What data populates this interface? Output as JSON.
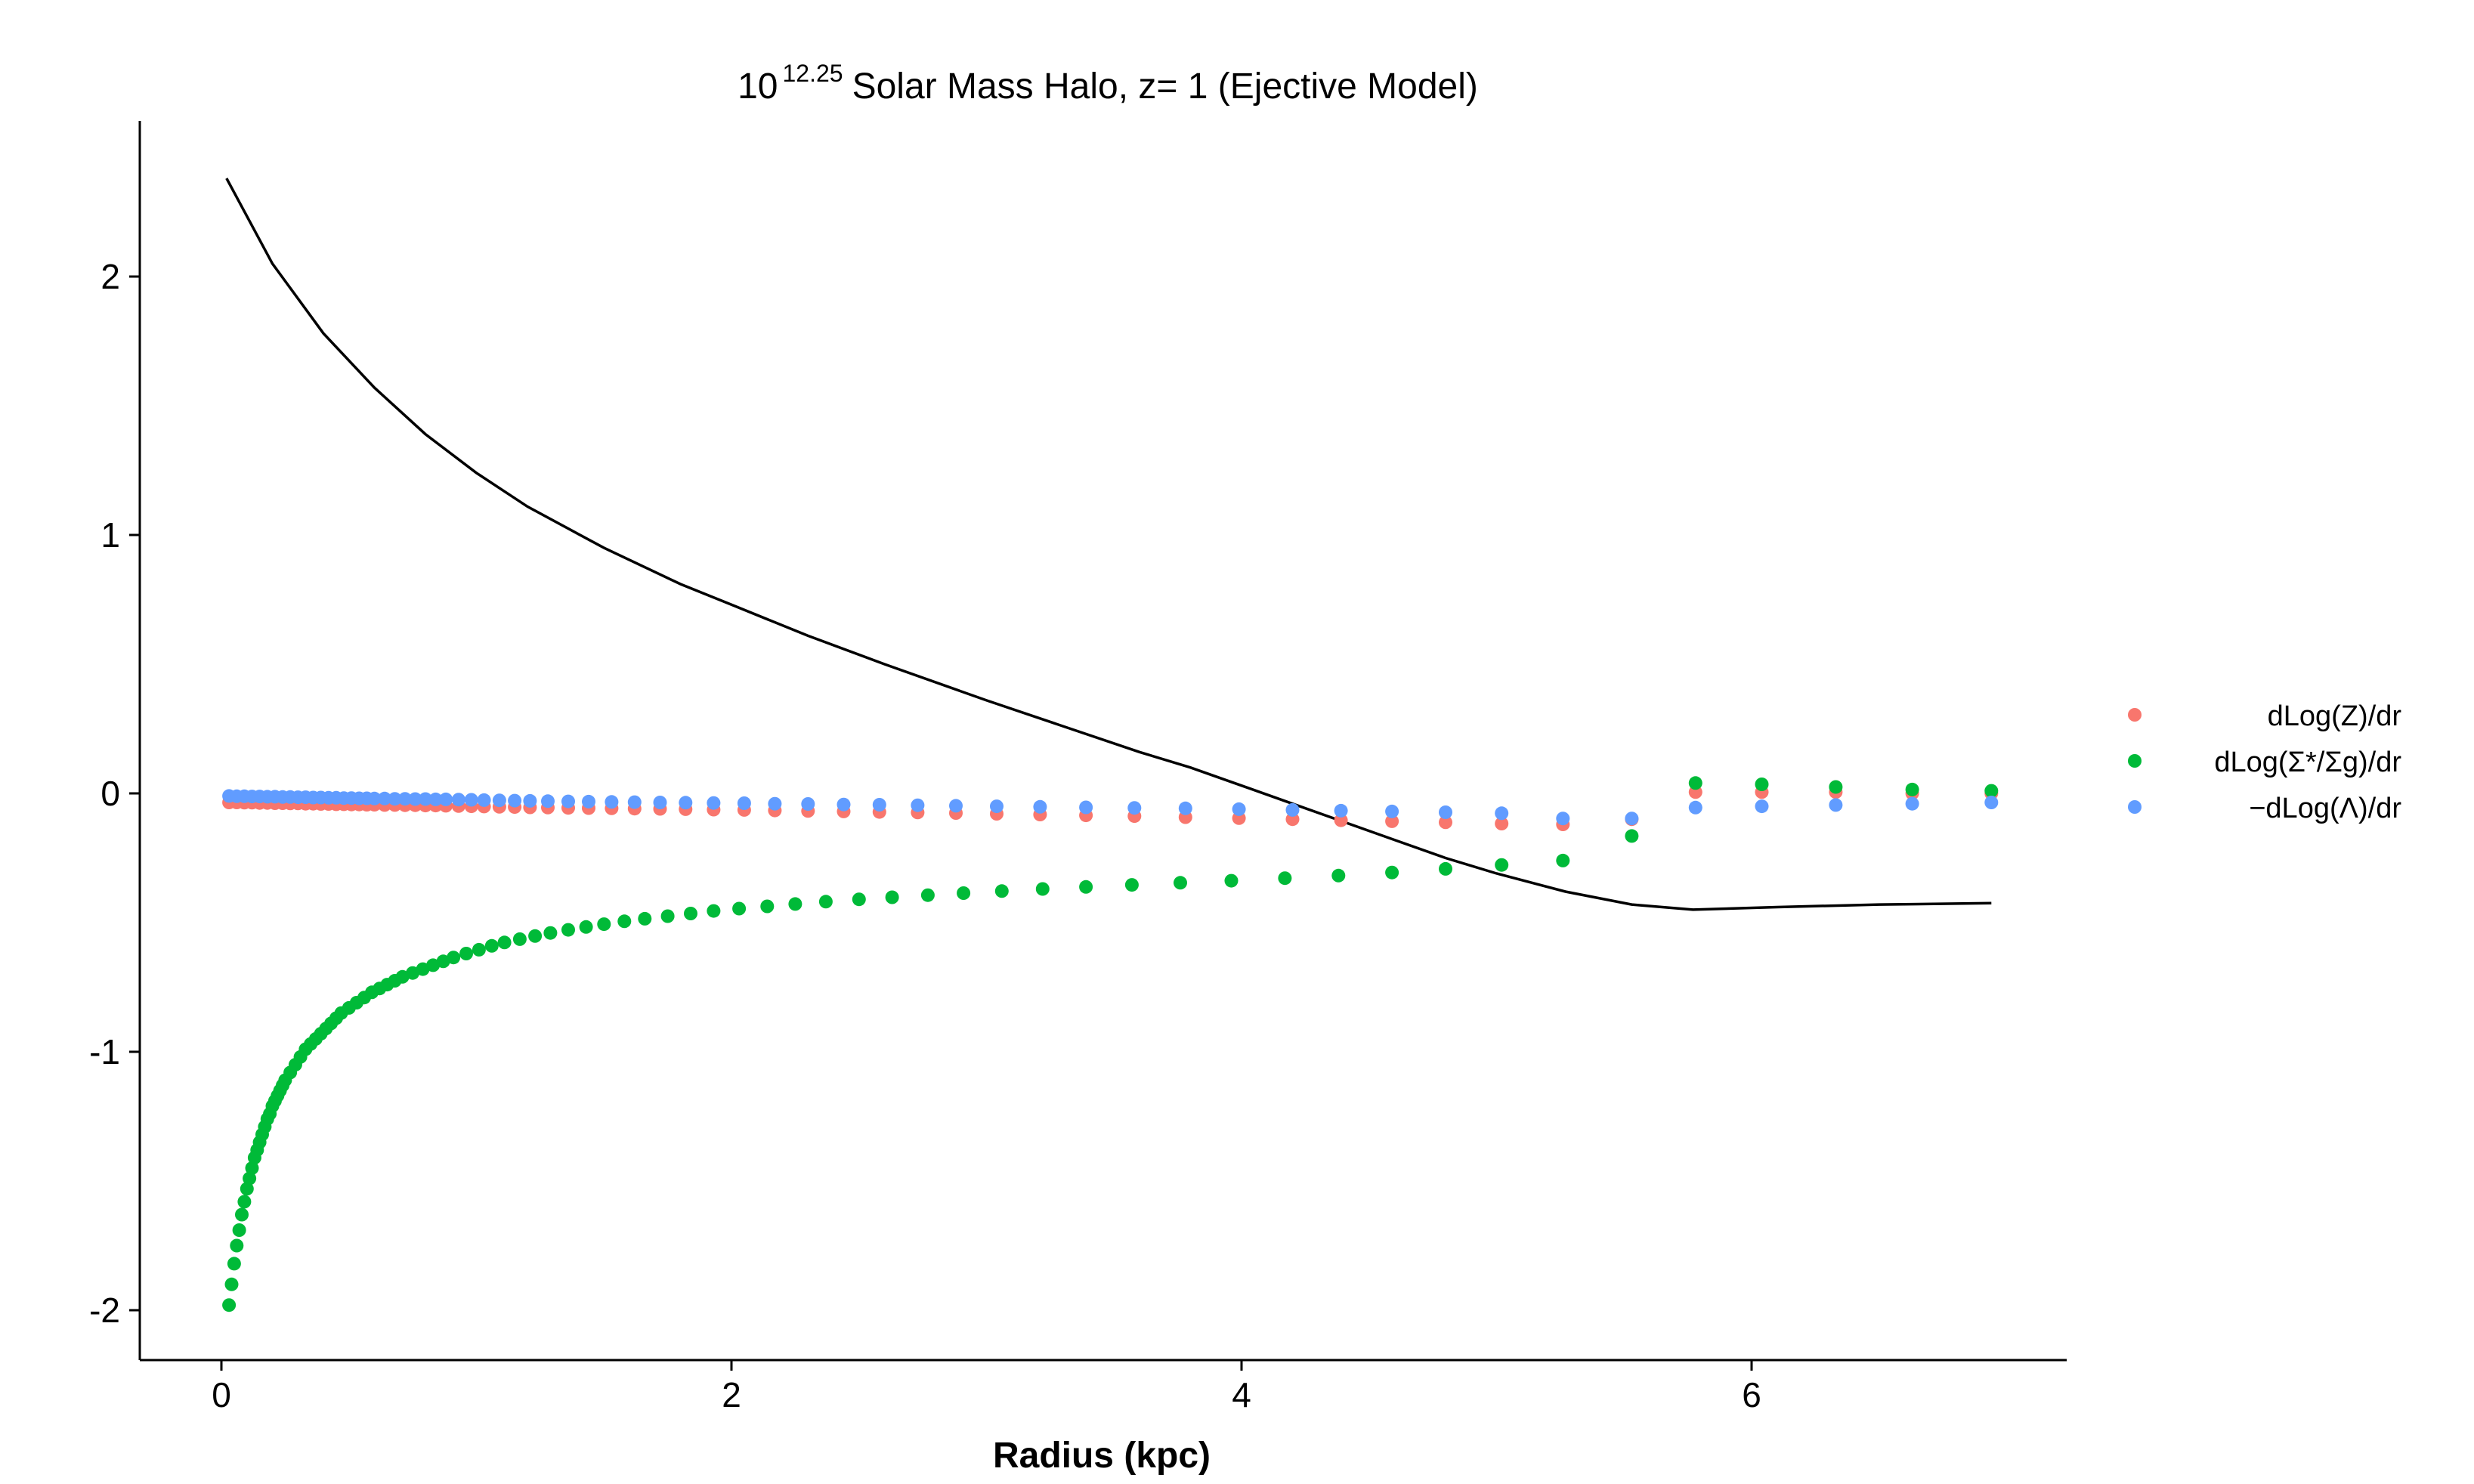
{
  "chart_data": {
    "type": "scatter",
    "title": {
      "base": "10",
      "exponent": "12.25",
      "text": "Solar Mass Halo, z= 1 (Ejective Model)"
    },
    "xlabel": "Radius (kpc)",
    "ylabel": "",
    "xlim": [
      -0.3,
      7.3
    ],
    "ylim": [
      -2.2,
      2.6
    ],
    "x_ticks": [
      0,
      2,
      4,
      6
    ],
    "x_tick_labels": [
      "0",
      "2",
      "4",
      "6"
    ],
    "y_ticks": [
      -2,
      -1,
      0,
      1,
      2
    ],
    "y_tick_labels": [
      "-2",
      "-1",
      "0",
      "1",
      "2"
    ],
    "grid": false,
    "legend_position": "right",
    "legend": [
      {
        "label": "dLog(Z)/dr",
        "color": "#F8766D"
      },
      {
        "label": "dLog(Σ*/Σg)/dr",
        "color": "#00BA38"
      },
      {
        "label": "−dLog(Λ)/dr",
        "color": "#619CFF"
      }
    ],
    "line": {
      "color": "#000000",
      "x": [
        0.02,
        0.2,
        0.4,
        0.6,
        0.8,
        1.0,
        1.2,
        1.5,
        1.8,
        2.0,
        2.3,
        2.6,
        3.0,
        3.3,
        3.6,
        3.8,
        4.0,
        4.2,
        4.4,
        4.6,
        4.8,
        5.0,
        5.27,
        5.53,
        5.77,
        6.1,
        6.5,
        6.94
      ],
      "y": [
        2.38,
        2.05,
        1.78,
        1.57,
        1.39,
        1.24,
        1.11,
        0.95,
        0.81,
        0.73,
        0.61,
        0.5,
        0.36,
        0.26,
        0.16,
        0.1,
        0.03,
        -0.04,
        -0.11,
        -0.18,
        -0.25,
        -0.31,
        -0.38,
        -0.43,
        -0.45,
        -0.44,
        -0.43,
        -0.425
      ]
    },
    "series": [
      {
        "name": "dLog(Z)/dr",
        "color": "#F8766D",
        "x": [
          0.03,
          0.06,
          0.09,
          0.12,
          0.15,
          0.18,
          0.21,
          0.24,
          0.27,
          0.3,
          0.33,
          0.36,
          0.39,
          0.42,
          0.45,
          0.48,
          0.51,
          0.54,
          0.57,
          0.6,
          0.64,
          0.68,
          0.72,
          0.76,
          0.8,
          0.84,
          0.88,
          0.93,
          0.98,
          1.03,
          1.09,
          1.15,
          1.21,
          1.28,
          1.36,
          1.44,
          1.53,
          1.62,
          1.72,
          1.82,
          1.93,
          2.05,
          2.17,
          2.3,
          2.44,
          2.58,
          2.73,
          2.88,
          3.04,
          3.21,
          3.39,
          3.58,
          3.78,
          3.99,
          4.2,
          4.39,
          4.59,
          4.8,
          5.02,
          5.26,
          5.53,
          5.78,
          6.04,
          6.33,
          6.63,
          6.94
        ],
        "y": [
          -0.035,
          -0.035,
          -0.036,
          -0.036,
          -0.037,
          -0.037,
          -0.038,
          -0.038,
          -0.039,
          -0.039,
          -0.04,
          -0.04,
          -0.041,
          -0.041,
          -0.042,
          -0.042,
          -0.043,
          -0.043,
          -0.044,
          -0.044,
          -0.045,
          -0.045,
          -0.046,
          -0.046,
          -0.047,
          -0.047,
          -0.048,
          -0.049,
          -0.05,
          -0.051,
          -0.052,
          -0.053,
          -0.054,
          -0.055,
          -0.056,
          -0.057,
          -0.058,
          -0.059,
          -0.06,
          -0.061,
          -0.063,
          -0.064,
          -0.066,
          -0.068,
          -0.07,
          -0.072,
          -0.074,
          -0.076,
          -0.079,
          -0.082,
          -0.085,
          -0.088,
          -0.092,
          -0.096,
          -0.1,
          -0.104,
          -0.108,
          -0.112,
          -0.117,
          -0.12,
          -0.1,
          0.005,
          0.005,
          0.005,
          0.0,
          0.0
        ]
      },
      {
        "name": "dLog(Σ*/Σg)/dr",
        "color": "#00BA38",
        "x": [
          0.03,
          0.04,
          0.05,
          0.06,
          0.07,
          0.08,
          0.09,
          0.1,
          0.11,
          0.12,
          0.13,
          0.14,
          0.15,
          0.16,
          0.17,
          0.18,
          0.19,
          0.2,
          0.21,
          0.22,
          0.23,
          0.24,
          0.25,
          0.27,
          0.29,
          0.31,
          0.33,
          0.35,
          0.37,
          0.39,
          0.41,
          0.43,
          0.45,
          0.47,
          0.5,
          0.53,
          0.56,
          0.59,
          0.62,
          0.65,
          0.68,
          0.71,
          0.75,
          0.79,
          0.83,
          0.87,
          0.91,
          0.96,
          1.01,
          1.06,
          1.11,
          1.17,
          1.23,
          1.29,
          1.36,
          1.43,
          1.5,
          1.58,
          1.66,
          1.75,
          1.84,
          1.93,
          2.03,
          2.14,
          2.25,
          2.37,
          2.5,
          2.63,
          2.77,
          2.91,
          3.06,
          3.22,
          3.39,
          3.57,
          3.76,
          3.96,
          4.17,
          4.38,
          4.59,
          4.8,
          5.02,
          5.26,
          5.53,
          5.78,
          6.04,
          6.33,
          6.63,
          6.94
        ],
        "y": [
          -1.98,
          -1.9,
          -1.82,
          -1.75,
          -1.69,
          -1.63,
          -1.58,
          -1.53,
          -1.49,
          -1.45,
          -1.41,
          -1.38,
          -1.35,
          -1.32,
          -1.29,
          -1.26,
          -1.24,
          -1.21,
          -1.19,
          -1.17,
          -1.15,
          -1.13,
          -1.11,
          -1.08,
          -1.05,
          -1.02,
          -0.99,
          -0.97,
          -0.95,
          -0.93,
          -0.91,
          -0.89,
          -0.87,
          -0.85,
          -0.83,
          -0.81,
          -0.79,
          -0.77,
          -0.755,
          -0.74,
          -0.725,
          -0.71,
          -0.695,
          -0.68,
          -0.665,
          -0.65,
          -0.635,
          -0.62,
          -0.605,
          -0.59,
          -0.577,
          -0.564,
          -0.552,
          -0.54,
          -0.528,
          -0.517,
          -0.506,
          -0.495,
          -0.485,
          -0.475,
          -0.465,
          -0.455,
          -0.446,
          -0.437,
          -0.428,
          -0.419,
          -0.41,
          -0.402,
          -0.394,
          -0.386,
          -0.378,
          -0.37,
          -0.362,
          -0.354,
          -0.346,
          -0.338,
          -0.328,
          -0.318,
          -0.306,
          -0.292,
          -0.277,
          -0.26,
          -0.165,
          0.04,
          0.035,
          0.025,
          0.015,
          0.01
        ]
      },
      {
        "name": "−dLog(Λ)/dr",
        "color": "#619CFF",
        "x": [
          0.03,
          0.06,
          0.09,
          0.12,
          0.15,
          0.18,
          0.21,
          0.24,
          0.27,
          0.3,
          0.33,
          0.36,
          0.39,
          0.42,
          0.45,
          0.48,
          0.51,
          0.54,
          0.57,
          0.6,
          0.64,
          0.68,
          0.72,
          0.76,
          0.8,
          0.84,
          0.88,
          0.93,
          0.98,
          1.03,
          1.09,
          1.15,
          1.21,
          1.28,
          1.36,
          1.44,
          1.53,
          1.62,
          1.72,
          1.82,
          1.93,
          2.05,
          2.17,
          2.3,
          2.44,
          2.58,
          2.73,
          2.88,
          3.04,
          3.21,
          3.39,
          3.58,
          3.78,
          3.99,
          4.2,
          4.39,
          4.59,
          4.8,
          5.02,
          5.26,
          5.53,
          5.78,
          6.04,
          6.33,
          6.63,
          6.94
        ],
        "y": [
          -0.01,
          -0.011,
          -0.011,
          -0.012,
          -0.012,
          -0.013,
          -0.013,
          -0.014,
          -0.014,
          -0.015,
          -0.015,
          -0.016,
          -0.016,
          -0.017,
          -0.017,
          -0.018,
          -0.018,
          -0.019,
          -0.019,
          -0.02,
          -0.02,
          -0.021,
          -0.021,
          -0.022,
          -0.022,
          -0.023,
          -0.023,
          -0.024,
          -0.025,
          -0.026,
          -0.027,
          -0.028,
          -0.029,
          -0.03,
          -0.031,
          -0.032,
          -0.033,
          -0.034,
          -0.035,
          -0.036,
          -0.037,
          -0.038,
          -0.04,
          -0.041,
          -0.043,
          -0.044,
          -0.046,
          -0.048,
          -0.05,
          -0.052,
          -0.054,
          -0.056,
          -0.058,
          -0.061,
          -0.064,
          -0.067,
          -0.07,
          -0.073,
          -0.077,
          -0.097,
          -0.097,
          -0.055,
          -0.05,
          -0.045,
          -0.04,
          -0.035
        ]
      }
    ]
  }
}
